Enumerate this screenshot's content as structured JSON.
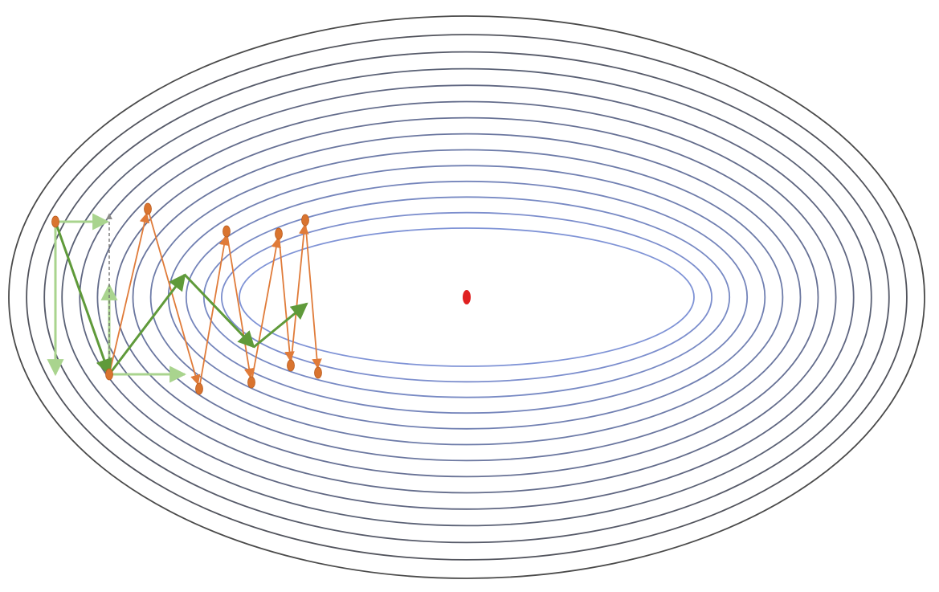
{
  "colors": {
    "background": "#ffffff",
    "contour_outer": "#4a4a4a",
    "contour_inner": "#7f93d6",
    "minimum": "#e02020",
    "sgd_path": "#e07b39",
    "sgd_point": "#d9742f",
    "momentum_path": "#5f9a3a",
    "momentum_decomposition": "#a9d48e",
    "guide_dashed": "#6b6b6b"
  },
  "diagram": {
    "contour_count": 14,
    "minimum": {
      "label": ""
    },
    "sgd_path": {
      "label": "",
      "point_count": 10
    },
    "momentum_path": {
      "label": "",
      "point_count": 6
    }
  }
}
